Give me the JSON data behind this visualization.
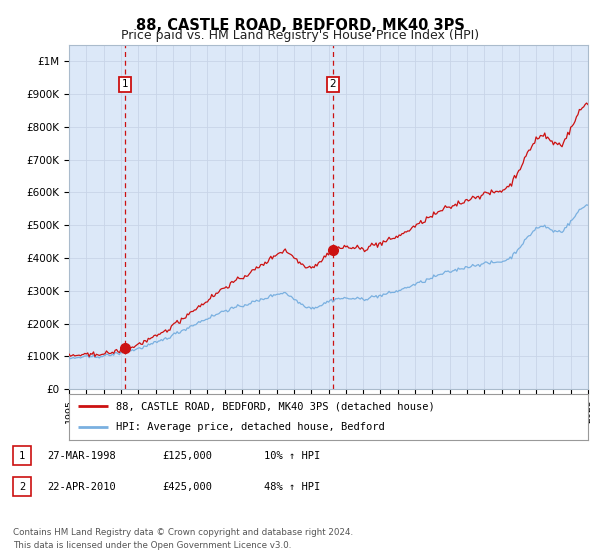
{
  "title": "88, CASTLE ROAD, BEDFORD, MK40 3PS",
  "subtitle": "Price paid vs. HM Land Registry's House Price Index (HPI)",
  "title_fontsize": 10.5,
  "subtitle_fontsize": 9,
  "bg_color": "#ffffff",
  "grid_color": "#c8d4e8",
  "plot_bg_color": "#dce8f8",
  "hpi_line_color": "#7ab0e0",
  "price_line_color": "#cc1111",
  "dashed_color": "#cc1111",
  "marker_color": "#cc1111",
  "ylim": [
    0,
    1050000
  ],
  "yticks": [
    0,
    100000,
    200000,
    300000,
    400000,
    500000,
    600000,
    700000,
    800000,
    900000,
    1000000
  ],
  "ytick_labels": [
    "£0",
    "£100K",
    "£200K",
    "£300K",
    "£400K",
    "£500K",
    "£600K",
    "£700K",
    "£800K",
    "£900K",
    "£1M"
  ],
  "sale1_year": 1998.23,
  "sale1_price": 125000,
  "sale1_label": "1",
  "sale2_year": 2010.25,
  "sale2_price": 425000,
  "sale2_label": "2",
  "legend_line1": "88, CASTLE ROAD, BEDFORD, MK40 3PS (detached house)",
  "legend_line2": "HPI: Average price, detached house, Bedford",
  "table_row1": [
    "1",
    "27-MAR-1998",
    "£125,000",
    "10% ↑ HPI"
  ],
  "table_row2": [
    "2",
    "22-APR-2010",
    "£425,000",
    "48% ↑ HPI"
  ],
  "footer": "Contains HM Land Registry data © Crown copyright and database right 2024.\nThis data is licensed under the Open Government Licence v3.0."
}
